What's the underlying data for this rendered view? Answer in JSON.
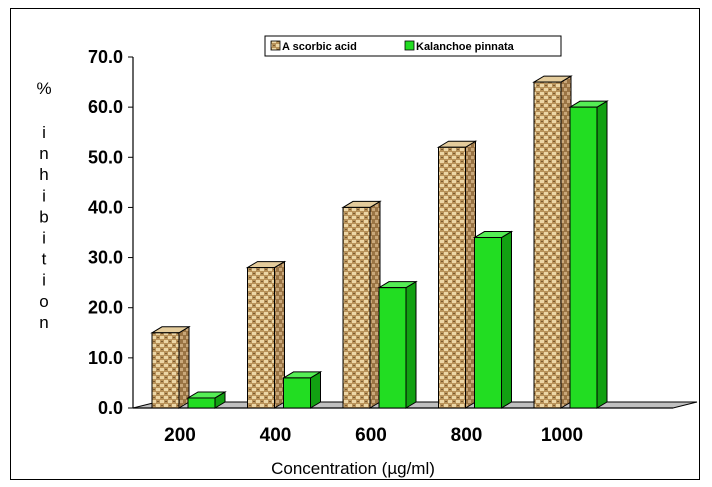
{
  "chart_data": {
    "type": "bar",
    "categories": [
      "200",
      "400",
      "600",
      "800",
      "1000"
    ],
    "series": [
      {
        "name": "A scorbic acid",
        "values": [
          15.0,
          28.0,
          40.0,
          52.0,
          65.0
        ],
        "color": "#c8a878"
      },
      {
        "name": "Kalanchoe pinnata",
        "values": [
          2.0,
          6.0,
          24.0,
          34.0,
          60.0
        ],
        "color": "#22dd22"
      }
    ],
    "yticks": [
      "0.0",
      "10.0",
      "20.0",
      "30.0",
      "40.0",
      "50.0",
      "60.0",
      "70.0"
    ],
    "ylim": [
      0,
      70
    ],
    "ylabel": "% inhibition",
    "xlabel": "Concentration (µg/ml)",
    "legend_position": "top-center",
    "grid": false
  }
}
